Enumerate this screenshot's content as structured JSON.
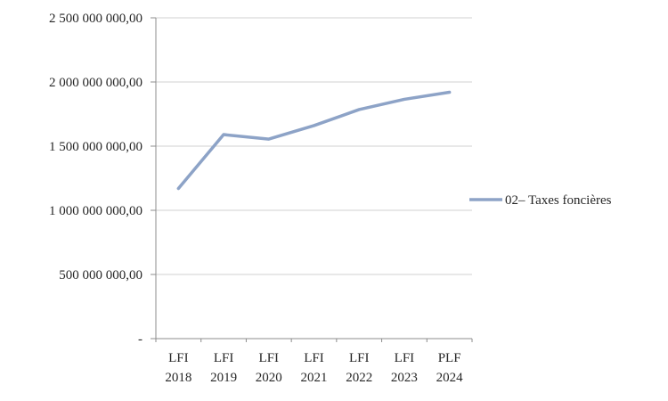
{
  "chart_data": {
    "type": "line",
    "title": "",
    "xlabel": "",
    "ylabel": "",
    "grid": "horizontal",
    "legend_position": "right",
    "categories": [
      {
        "line1": "LFI",
        "line2": "2018"
      },
      {
        "line1": "LFI",
        "line2": "2019"
      },
      {
        "line1": "LFI",
        "line2": "2020"
      },
      {
        "line1": "LFI",
        "line2": "2021"
      },
      {
        "line1": "LFI",
        "line2": "2022"
      },
      {
        "line1": "LFI",
        "line2": "2023"
      },
      {
        "line1": "PLF",
        "line2": "2024"
      }
    ],
    "series": [
      {
        "name": "02– Taxes foncières",
        "values": [
          1170000000,
          1590000000,
          1555000000,
          1660000000,
          1785000000,
          1865000000,
          1920000000
        ]
      }
    ],
    "ylim": [
      0,
      2500000000
    ],
    "y_ticks": [
      {
        "value": 0,
        "label": "-"
      },
      {
        "value": 500000000,
        "label": "500 000 000,00"
      },
      {
        "value": 1000000000,
        "label": "1 000 000 000,00"
      },
      {
        "value": 1500000000,
        "label": "1 500 000 000,00"
      },
      {
        "value": 2000000000,
        "label": "2 000 000 000,00"
      },
      {
        "value": 2500000000,
        "label": "2 500 000 000,00"
      }
    ],
    "colors": {
      "line": "#8da3c7",
      "gridline": "#d0d0d0",
      "axis": "#8c8c8c",
      "text": "#262626",
      "background": "#ffffff"
    }
  }
}
